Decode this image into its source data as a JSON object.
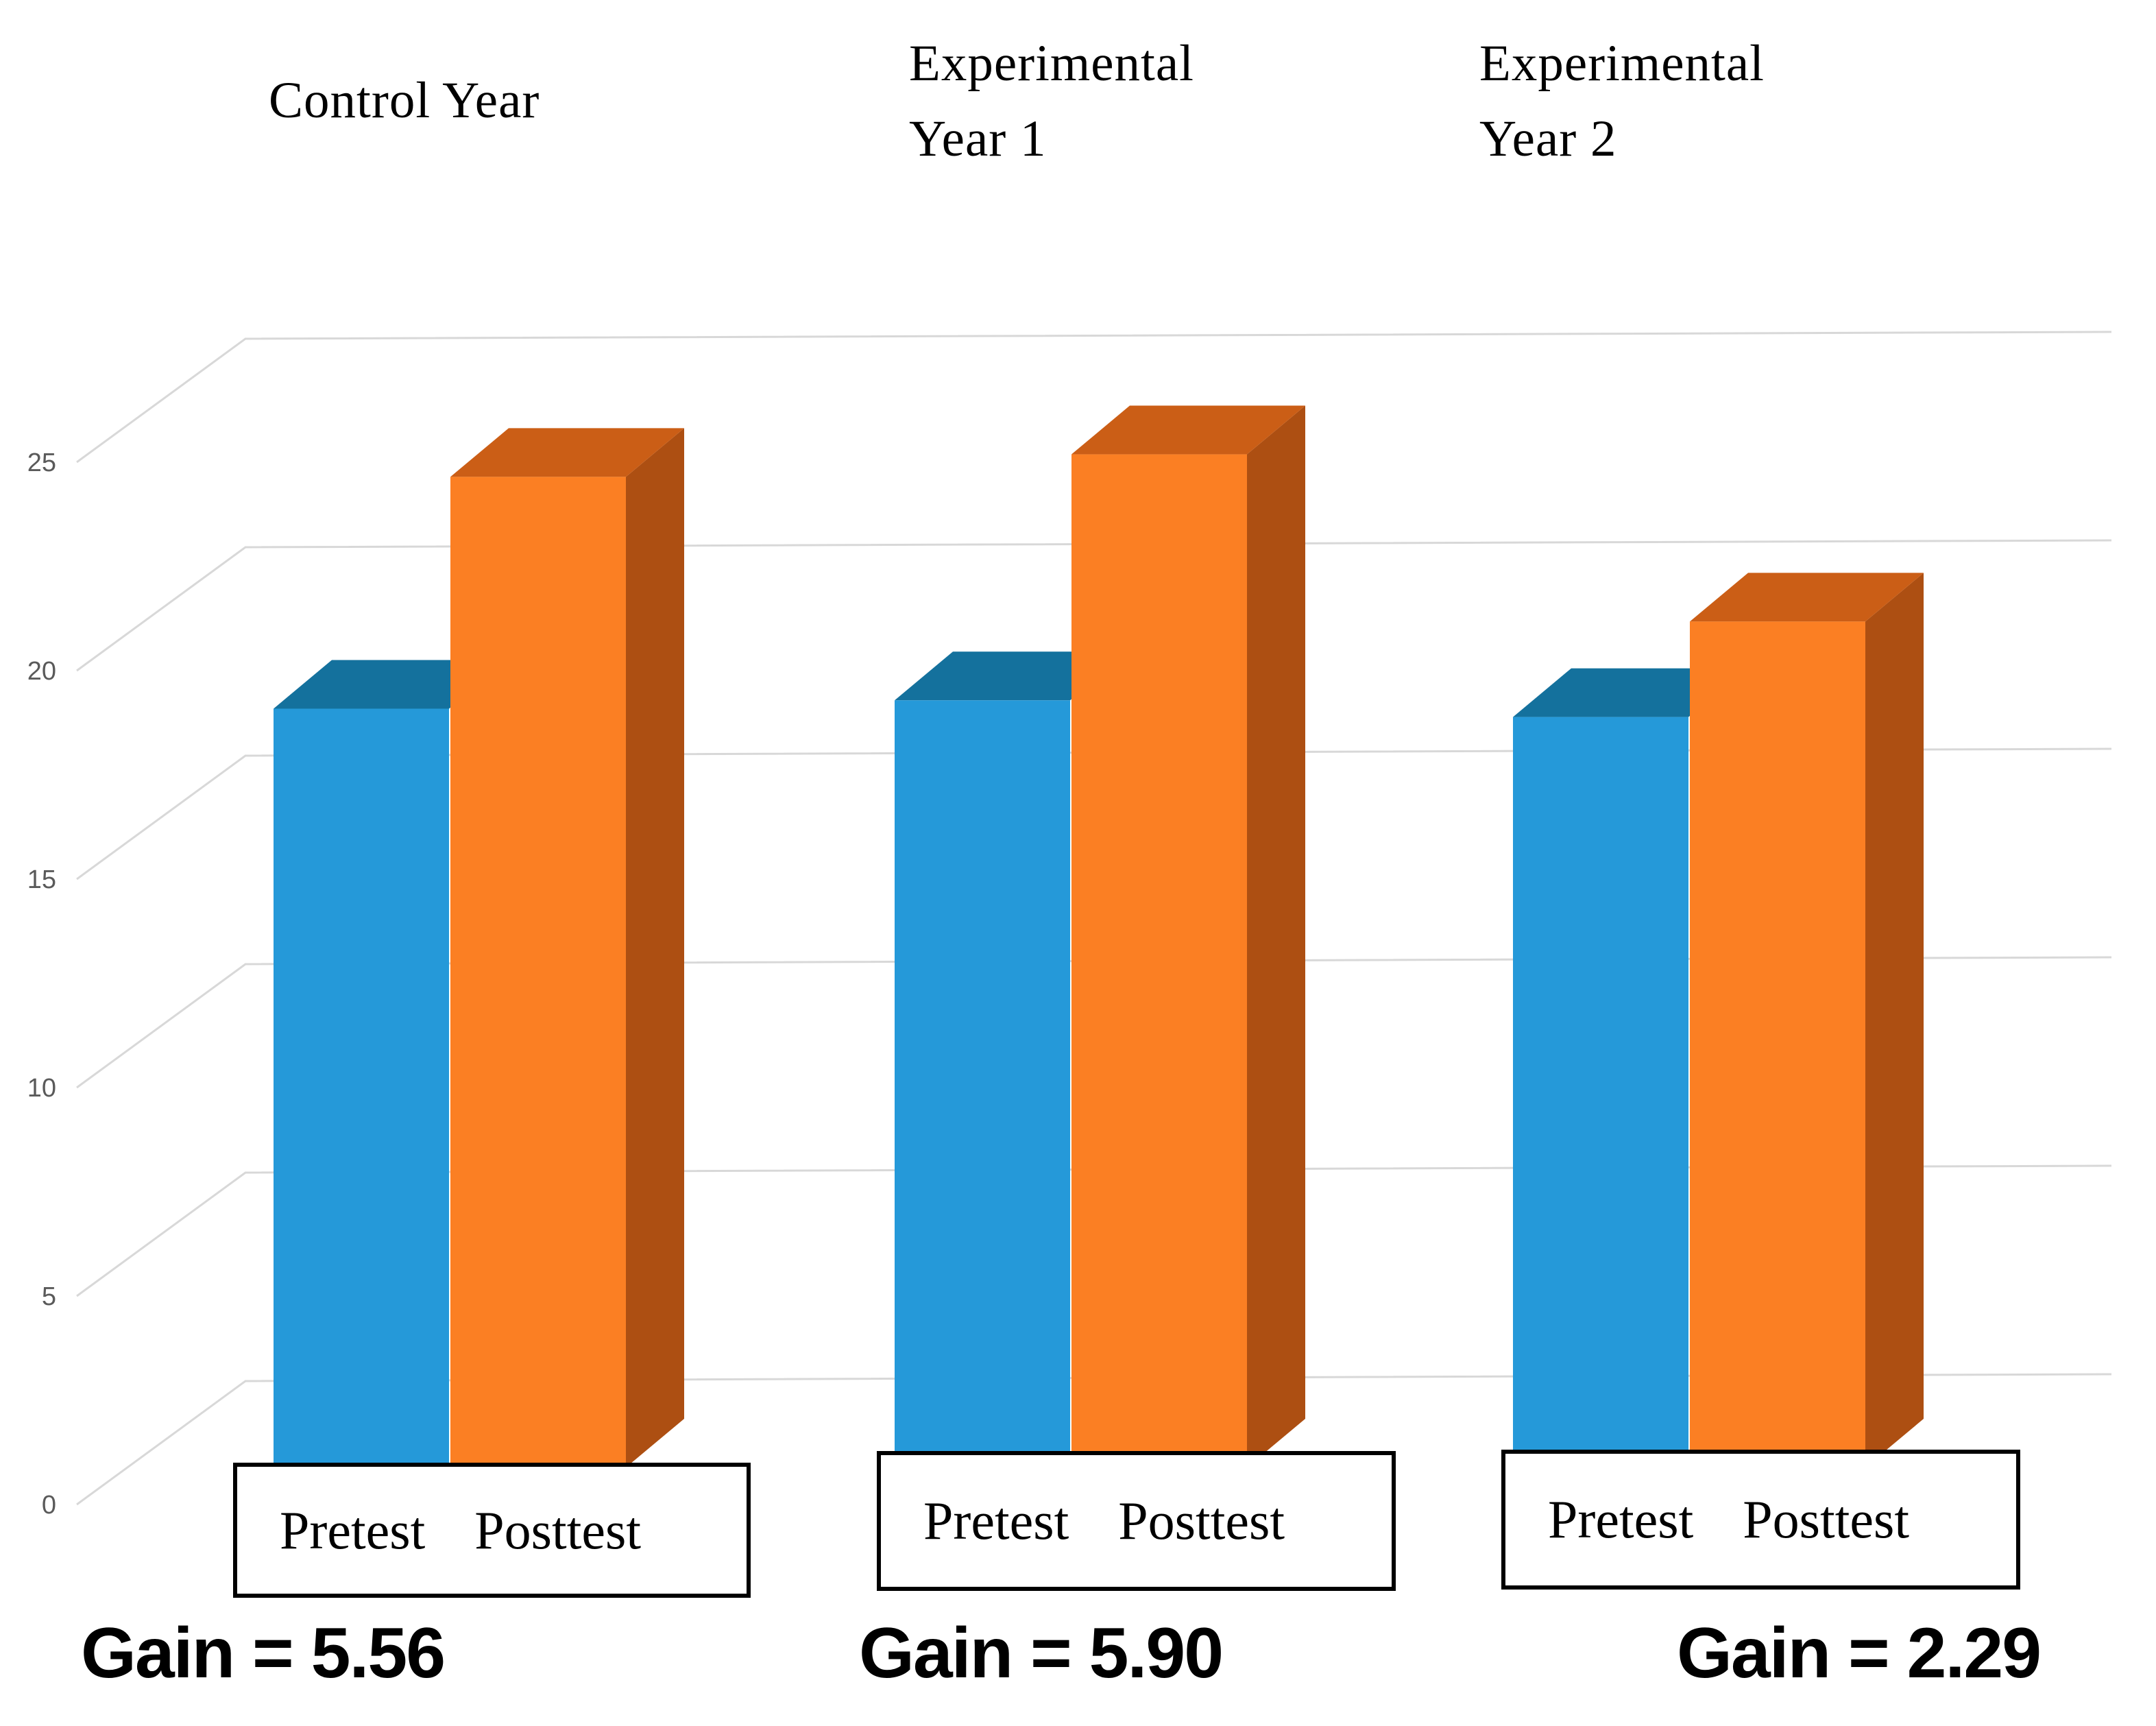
{
  "page": {
    "background": "#FFFFFF"
  },
  "group_titles": [
    {
      "lines": [
        "Control Year"
      ]
    },
    {
      "lines": [
        "Experimental",
        "Year 1"
      ]
    },
    {
      "lines": [
        "Experimental",
        "Year 2"
      ]
    }
  ],
  "legend": {
    "pretest_label": "Pretest",
    "posttest_label": "Posttest"
  },
  "gain_labels": [
    "Gain = 5.56",
    "Gain = 5.90",
    "Gain = 2.29"
  ],
  "chart_data": {
    "type": "bar",
    "style": "3d-clustered-column",
    "categories": [
      "Control Year",
      "Experimental Year 1",
      "Experimental Year 2"
    ],
    "series": [
      {
        "name": "Pretest",
        "color": "#2599D9",
        "top_color": "#14719D",
        "values": [
          18.2,
          18.4,
          18.0
        ]
      },
      {
        "name": "Posttest",
        "color": "#FB7F23",
        "top_color": "#CB5E16",
        "side_color": "#AD4F12",
        "values": [
          23.76,
          24.3,
          20.29
        ]
      }
    ],
    "gains": [
      5.56,
      5.9,
      2.29
    ],
    "y_ticks": [
      0,
      5,
      10,
      15,
      20,
      25
    ],
    "ylim": [
      0,
      27.5
    ],
    "gridlines": true,
    "gridline_color": "#D8D8D8",
    "tick_label_color": "#5A5A5A",
    "legend_position": "below-each-group",
    "title": ""
  }
}
